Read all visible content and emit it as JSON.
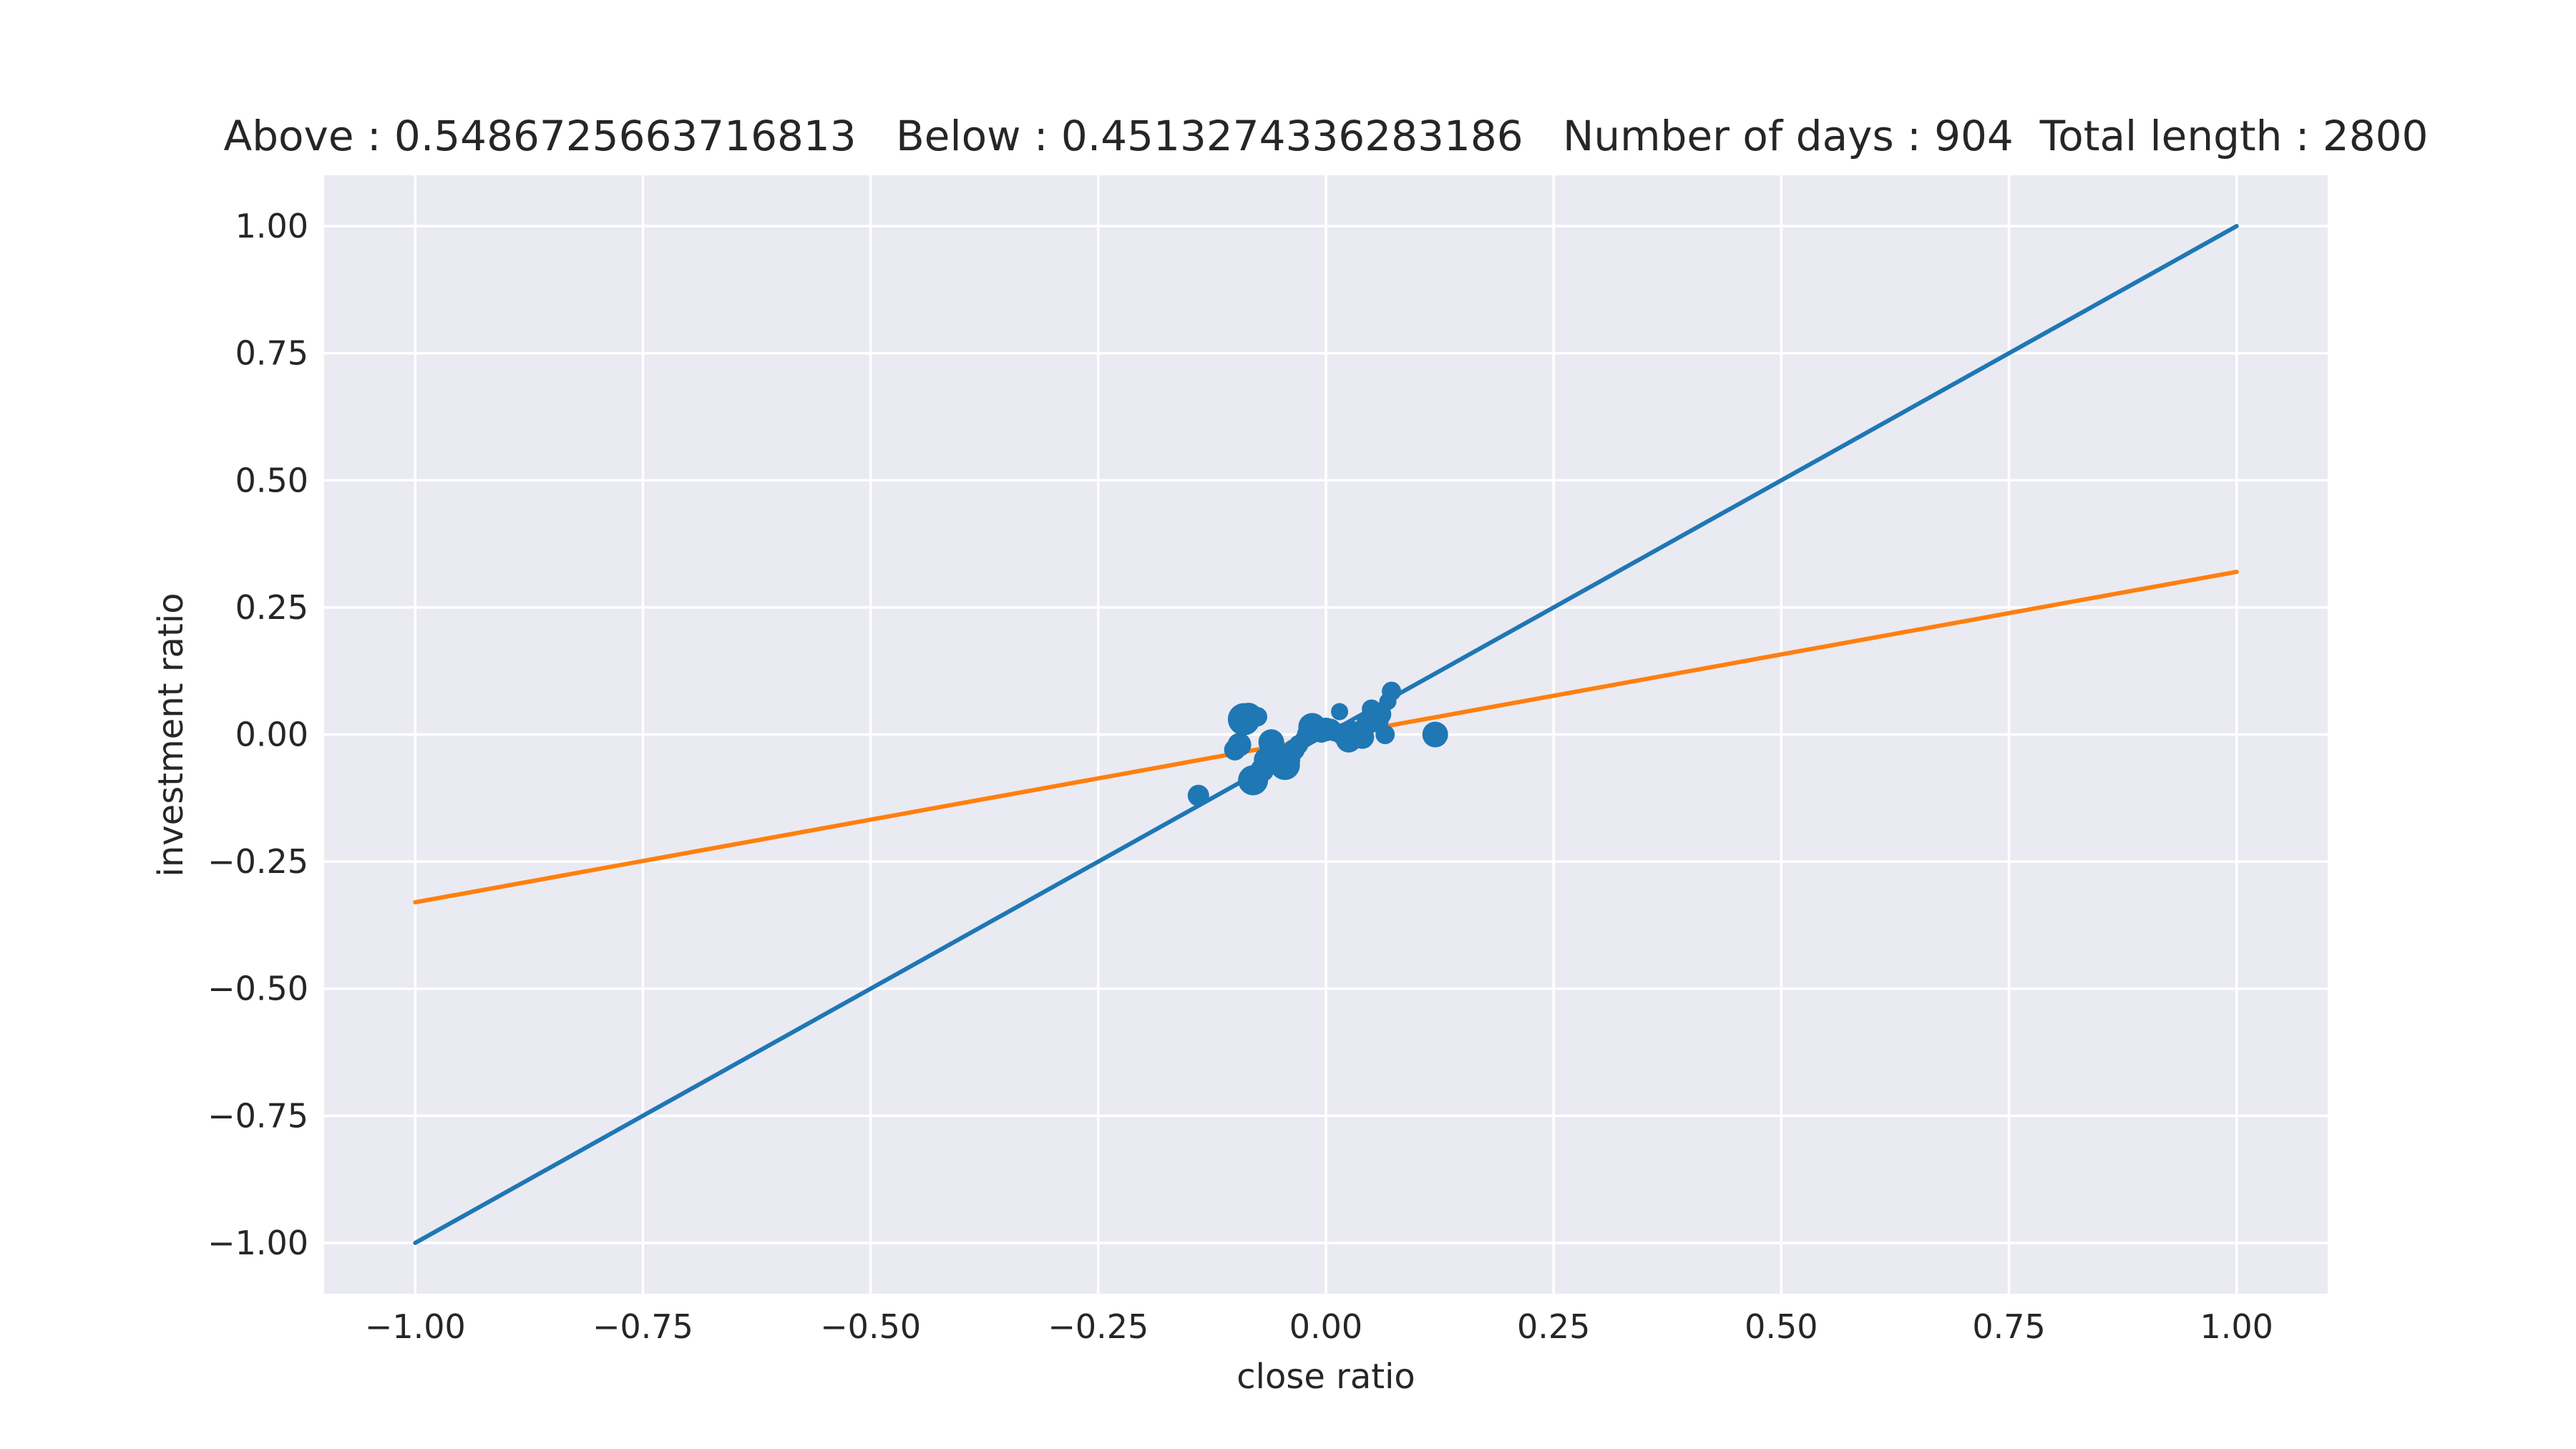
{
  "chart_data": {
    "type": "scatter",
    "title": "Above : 0.5486725663716813   Below : 0.4513274336283186   Number of days : 904  Total length : 2800",
    "xlabel": "close ratio",
    "ylabel": "investment ratio",
    "xlim": [
      -1.1,
      1.1
    ],
    "ylim": [
      -1.1,
      1.1
    ],
    "x_ticks": [
      -1.0,
      -0.75,
      -0.5,
      -0.25,
      0.0,
      0.25,
      0.5,
      0.75,
      1.0
    ],
    "x_tick_labels": [
      "−1.00",
      "−0.75",
      "−0.50",
      "−0.25",
      "0.00",
      "0.25",
      "0.50",
      "0.75",
      "1.00"
    ],
    "y_ticks": [
      1.0,
      0.75,
      0.5,
      0.25,
      0.0,
      -0.25,
      -0.5,
      -0.75,
      -1.0
    ],
    "y_tick_labels": [
      "1.00",
      "0.75",
      "0.50",
      "0.25",
      "0.00",
      "−0.25",
      "−0.50",
      "−0.75",
      "−1.00"
    ],
    "grid": true,
    "background": "#eaeaf2",
    "lines": [
      {
        "color": "#1f77b4",
        "x": [
          -1.0,
          1.0
        ],
        "y": [
          -1.0,
          1.0
        ]
      },
      {
        "color": "#ff7f0e",
        "x": [
          -1.0,
          1.0
        ],
        "y": [
          -0.33,
          0.32
        ]
      }
    ],
    "scatter": {
      "color": "#1f77b4",
      "points": [
        {
          "x": -0.14,
          "y": -0.12,
          "s": 1.0
        },
        {
          "x": -0.1,
          "y": -0.03,
          "s": 1.0
        },
        {
          "x": -0.095,
          "y": -0.02,
          "s": 1.1
        },
        {
          "x": -0.09,
          "y": 0.03,
          "s": 1.5
        },
        {
          "x": -0.085,
          "y": 0.035,
          "s": 1.3
        },
        {
          "x": -0.08,
          "y": -0.09,
          "s": 1.4
        },
        {
          "x": -0.075,
          "y": 0.035,
          "s": 0.9
        },
        {
          "x": -0.07,
          "y": -0.07,
          "s": 1.1
        },
        {
          "x": -0.065,
          "y": -0.05,
          "s": 1.2
        },
        {
          "x": -0.06,
          "y": -0.015,
          "s": 1.2
        },
        {
          "x": -0.055,
          "y": -0.03,
          "s": 1.0
        },
        {
          "x": -0.05,
          "y": -0.05,
          "s": 1.1
        },
        {
          "x": -0.045,
          "y": -0.06,
          "s": 1.4
        },
        {
          "x": -0.04,
          "y": -0.05,
          "s": 1.0
        },
        {
          "x": -0.035,
          "y": -0.03,
          "s": 1.0
        },
        {
          "x": -0.03,
          "y": -0.02,
          "s": 0.9
        },
        {
          "x": -0.025,
          "y": -0.01,
          "s": 0.8
        },
        {
          "x": -0.02,
          "y": 0.0,
          "s": 1.0
        },
        {
          "x": -0.015,
          "y": 0.015,
          "s": 1.3
        },
        {
          "x": -0.01,
          "y": 0.01,
          "s": 1.1
        },
        {
          "x": -0.005,
          "y": 0.005,
          "s": 1.0
        },
        {
          "x": 0.0,
          "y": 0.01,
          "s": 1.1
        },
        {
          "x": 0.005,
          "y": 0.01,
          "s": 1.0
        },
        {
          "x": 0.01,
          "y": 0.005,
          "s": 0.9
        },
        {
          "x": 0.015,
          "y": 0.045,
          "s": 0.8
        },
        {
          "x": 0.02,
          "y": 0.0,
          "s": 1.1
        },
        {
          "x": 0.025,
          "y": -0.01,
          "s": 1.2
        },
        {
          "x": 0.03,
          "y": 0.005,
          "s": 1.0
        },
        {
          "x": 0.035,
          "y": 0.0,
          "s": 0.9
        },
        {
          "x": 0.04,
          "y": -0.005,
          "s": 1.1
        },
        {
          "x": 0.045,
          "y": 0.02,
          "s": 1.0
        },
        {
          "x": 0.05,
          "y": 0.05,
          "s": 0.9
        },
        {
          "x": 0.055,
          "y": 0.03,
          "s": 1.2
        },
        {
          "x": 0.06,
          "y": 0.04,
          "s": 1.0
        },
        {
          "x": 0.065,
          "y": 0.0,
          "s": 0.9
        },
        {
          "x": 0.068,
          "y": 0.065,
          "s": 0.8
        },
        {
          "x": 0.072,
          "y": 0.085,
          "s": 0.9
        },
        {
          "x": 0.12,
          "y": 0.0,
          "s": 1.2
        }
      ]
    }
  }
}
